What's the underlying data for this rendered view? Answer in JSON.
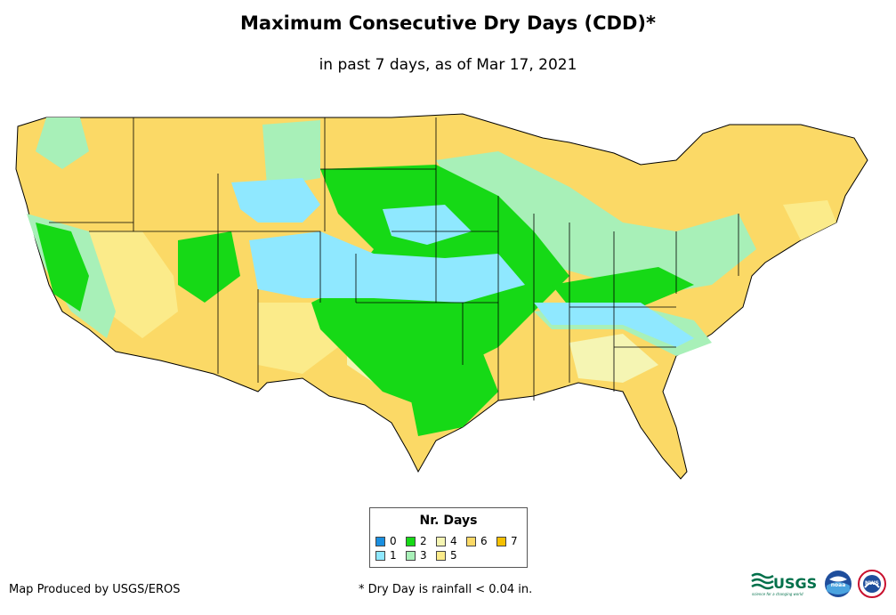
{
  "title": "Maximum Consecutive Dry Days (CDD)*",
  "subtitle": "in past 7 days, as of Mar 17, 2021",
  "legend": {
    "title": "Nr. Days",
    "items": [
      {
        "label": "0",
        "color": "#1a8fe0"
      },
      {
        "label": "1",
        "color": "#8fe8ff"
      },
      {
        "label": "2",
        "color": "#16d916"
      },
      {
        "label": "3",
        "color": "#a8f0b8"
      },
      {
        "label": "4",
        "color": "#f5f5b3"
      },
      {
        "label": "5",
        "color": "#fbeb8a"
      },
      {
        "label": "6",
        "color": "#fbd966"
      },
      {
        "label": "7",
        "color": "#f5c000"
      }
    ]
  },
  "footer": {
    "credit": "Map Produced by USGS/EROS",
    "note": "* Dry Day is rainfall < 0.04 in."
  },
  "logos": {
    "usgs": "USGS",
    "usgs_tagline": "science for a changing world",
    "noaa": "noaa",
    "nws": "NWS"
  }
}
